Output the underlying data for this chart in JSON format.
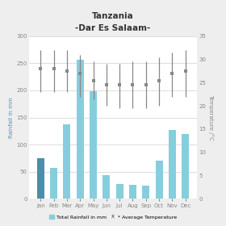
{
  "title": "Tanzania\n-Dar Es Salaam-",
  "months": [
    "Jan",
    "Feb",
    "Mar",
    "Apr",
    "May",
    "Jun",
    "Jul",
    "Aug",
    "Sep",
    "Oct",
    "Nov",
    "Dec"
  ],
  "rainfall": [
    75,
    57,
    138,
    257,
    198,
    44,
    28,
    26,
    25,
    70,
    127,
    120
  ],
  "temp_avg": [
    28,
    28,
    27.5,
    27,
    25.5,
    24.5,
    24.5,
    24.5,
    24.5,
    25.5,
    27,
    27.5
  ],
  "temp_high": [
    32,
    32,
    32,
    31,
    29.5,
    29,
    29,
    29.5,
    29.5,
    30.5,
    31.5,
    32
  ],
  "temp_low": [
    23,
    23,
    23,
    22,
    21.5,
    20,
    19.5,
    19.5,
    19.5,
    20,
    22,
    22
  ],
  "bar_color_jan": "#4a8fa8",
  "bar_color_default": "#87cedc",
  "rainfall_ylabel": "Rainfall in mm",
  "temp_ylabel": "Temperature /°C",
  "ylim_rainfall": [
    0,
    300
  ],
  "ylim_temp": [
    0,
    35
  ],
  "rainfall_yticks": [
    0,
    50,
    100,
    150,
    200,
    250,
    300
  ],
  "temp_yticks": [
    0,
    5,
    10,
    15,
    20,
    25,
    30,
    35
  ],
  "legend_rainfall": "Total Rainfall in mm",
  "legend_temp": "* Average Temperature",
  "background_color": "#eeeeee",
  "plot_bg_color": "#ffffff",
  "bar_width": 0.55,
  "gridcolor": "#d0d0d0",
  "line_color": "#888888"
}
